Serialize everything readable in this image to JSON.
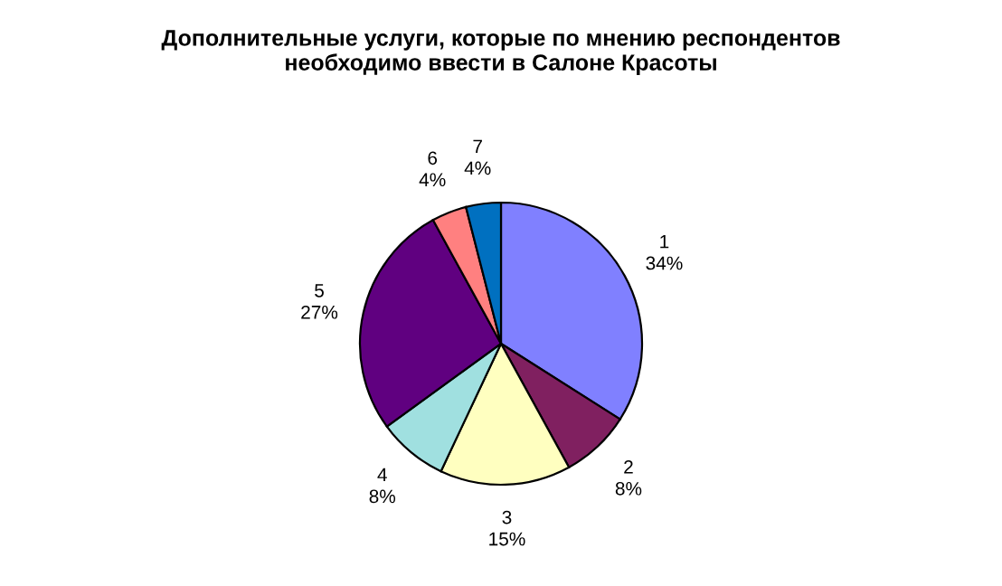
{
  "chart_data": {
    "type": "pie",
    "title": "Дополнительные услуги, которые по мнению респондентов\nнеобходимо ввести в Салоне Красоты",
    "categories": [
      "1",
      "2",
      "3",
      "4",
      "5",
      "6",
      "7"
    ],
    "values": [
      34,
      8,
      15,
      8,
      27,
      4,
      4
    ],
    "value_labels": [
      "34%",
      "8%",
      "15%",
      "8%",
      "27%",
      "4%",
      "4%"
    ],
    "colors": [
      "#8080ff",
      "#802060",
      "#ffffc0",
      "#a0e0e0",
      "#600080",
      "#ff8080",
      "#0070c0"
    ],
    "legend": false
  }
}
